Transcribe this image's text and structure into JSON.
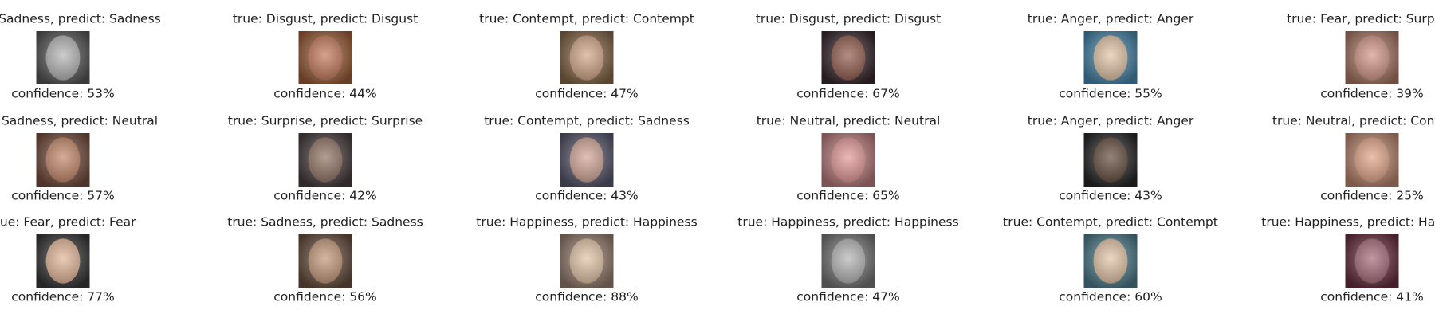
{
  "panels": [
    {
      "title": "true: Sadness, predict: Sadness",
      "confidence": "confidence: 53%"
    },
    {
      "title": "true: Disgust, predict: Disgust",
      "confidence": "confidence: 44%"
    },
    {
      "title": "true: Contempt, predict: Contempt",
      "confidence": "confidence: 47%"
    },
    {
      "title": "true: Disgust, predict: Disgust",
      "confidence": "confidence: 67%"
    },
    {
      "title": "true: Anger, predict: Anger",
      "confidence": "confidence: 55%"
    },
    {
      "title": "true: Fear, predict: Surprise",
      "confidence": "confidence: 39%"
    },
    {
      "title": "true: Sadness, predict: Neutral",
      "confidence": "confidence: 57%"
    },
    {
      "title": "true: Surprise, predict: Surprise",
      "confidence": "confidence: 42%"
    },
    {
      "title": "true: Contempt, predict: Sadness",
      "confidence": "confidence: 43%"
    },
    {
      "title": "true: Neutral, predict: Neutral",
      "confidence": "confidence: 65%"
    },
    {
      "title": "true: Anger, predict: Anger",
      "confidence": "confidence: 43%"
    },
    {
      "title": "true: Neutral, predict: Contempt",
      "confidence": "confidence: 25%"
    },
    {
      "title": "true: Fear, predict: Fear",
      "confidence": "confidence: 77%"
    },
    {
      "title": "true: Sadness, predict: Sadness",
      "confidence": "confidence: 56%"
    },
    {
      "title": "true: Happiness, predict: Happiness",
      "confidence": "confidence: 88%"
    },
    {
      "title": "true: Happiness, predict: Happiness",
      "confidence": "confidence: 47%"
    },
    {
      "title": "true: Contempt, predict: Contempt",
      "confidence": "confidence: 60%"
    },
    {
      "title": "true: Happiness, predict: Happiness",
      "confidence": "confidence: 41%"
    }
  ]
}
